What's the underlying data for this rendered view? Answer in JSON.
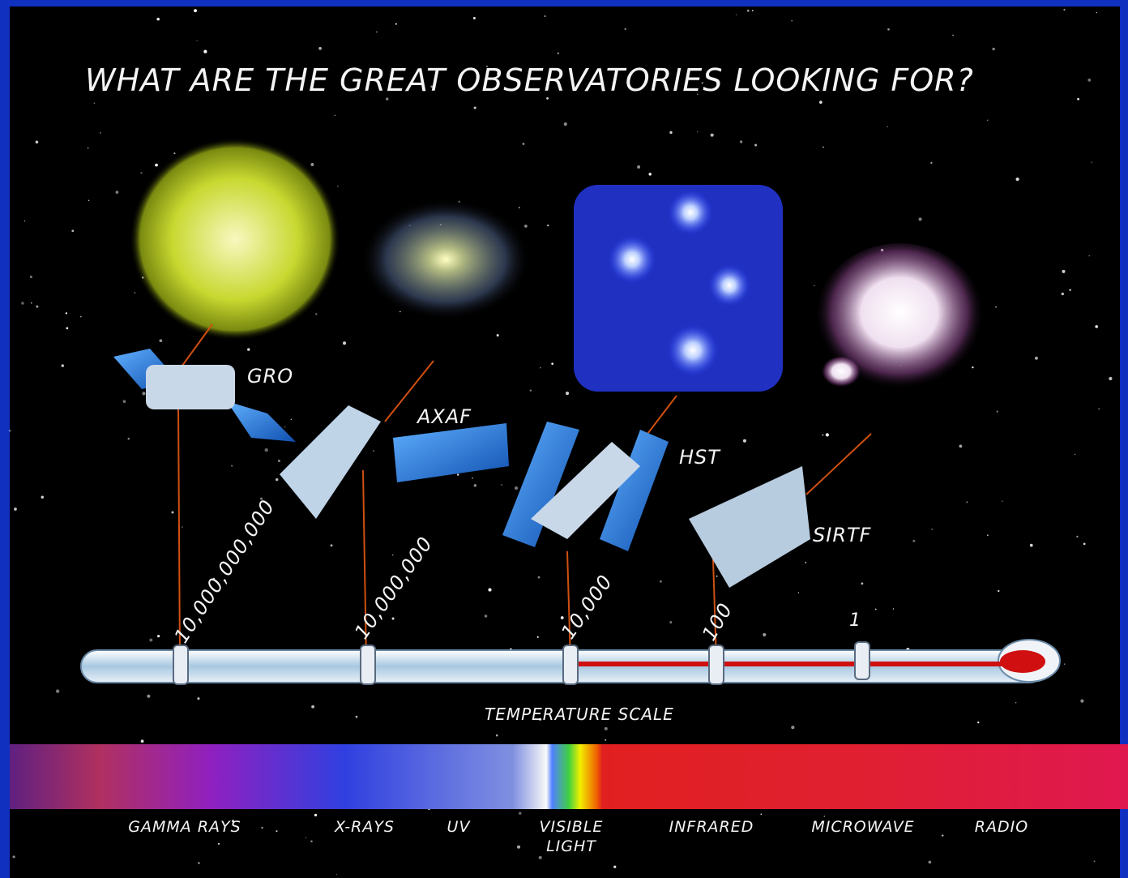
{
  "title": "WHAT ARE THE GREAT OBSERVATORIES LOOKING FOR?",
  "observatories": [
    {
      "name": "GRO",
      "temperature": "10,000,000,000"
    },
    {
      "name": "AXAF",
      "temperature": "10,000,000"
    },
    {
      "name": "HST",
      "temperature": "10,000"
    },
    {
      "name": "SIRTF",
      "temperature": "100"
    }
  ],
  "last_mark": "1",
  "scale_label": "TEMPERATURE SCALE",
  "spectrum": [
    "GAMMA RAYS",
    "X-RAYS",
    "UV",
    "VISIBLE LIGHT",
    "INFRARED",
    "MICROWAVE",
    "RADIO"
  ]
}
